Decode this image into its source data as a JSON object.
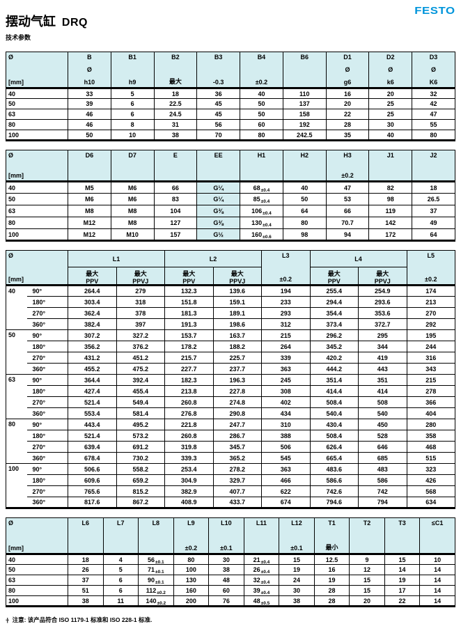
{
  "header": {
    "title_cn": "摆动气缸",
    "title_code": "DRQ",
    "subtitle": "技术参数",
    "brand": "FESTO"
  },
  "colors": {
    "brand_blue": "#0095db",
    "table_header_bg": "#d4edf0"
  },
  "tables": [
    {
      "name": "dimensions-b-to-d3",
      "type": "simple",
      "unit_col": [
        "Ø",
        "[mm]"
      ],
      "columns": [
        {
          "lines": [
            "B",
            "Ø",
            "h10"
          ]
        },
        {
          "lines": [
            "B1",
            "",
            "h9"
          ]
        },
        {
          "lines": [
            "B2",
            "",
            "最大"
          ]
        },
        {
          "lines": [
            "B3",
            "",
            "-0.3"
          ]
        },
        {
          "lines": [
            "B4",
            "",
            "±0.2"
          ]
        },
        {
          "lines": [
            "B6",
            "",
            ""
          ]
        },
        {
          "lines": [
            "D1",
            "Ø",
            "g6"
          ]
        },
        {
          "lines": [
            "D2",
            "Ø",
            "k6"
          ]
        },
        {
          "lines": [
            "D3",
            "Ø",
            "K6"
          ]
        }
      ],
      "rows": [
        {
          "size": "40",
          "cells": [
            "33",
            "5",
            "18",
            "36",
            "40",
            "110",
            "16",
            "20",
            "32"
          ]
        },
        {
          "size": "50",
          "cells": [
            "39",
            "6",
            "22.5",
            "45",
            "50",
            "137",
            "20",
            "25",
            "42"
          ]
        },
        {
          "size": "63",
          "cells": [
            "46",
            "6",
            "24.5",
            "45",
            "50",
            "158",
            "22",
            "25",
            "47"
          ]
        },
        {
          "size": "80",
          "cells": [
            "46",
            "8",
            "31",
            "56",
            "60",
            "192",
            "28",
            "30",
            "55"
          ]
        },
        {
          "size": "100",
          "cells": [
            "50",
            "10",
            "38",
            "70",
            "80",
            "242.5",
            "35",
            "40",
            "80"
          ]
        }
      ]
    },
    {
      "name": "dimensions-d6-to-j2",
      "type": "simple",
      "unit_col": [
        "Ø",
        "[mm]"
      ],
      "highlight_col": 3,
      "columns": [
        {
          "lines": [
            "D6",
            "",
            ""
          ]
        },
        {
          "lines": [
            "D7",
            "",
            ""
          ]
        },
        {
          "lines": [
            "E",
            "",
            ""
          ]
        },
        {
          "lines": [
            "EE",
            "",
            ""
          ]
        },
        {
          "lines": [
            "H1",
            "",
            ""
          ]
        },
        {
          "lines": [
            "H2",
            "",
            ""
          ]
        },
        {
          "lines": [
            "H3",
            "",
            "±0.2"
          ]
        },
        {
          "lines": [
            "J1",
            "",
            ""
          ]
        },
        {
          "lines": [
            "J2",
            "",
            ""
          ]
        }
      ],
      "rows": [
        {
          "size": "40",
          "cells": [
            "M5",
            "M6",
            "66",
            "G¼",
            [
              "68",
              "±0.4"
            ],
            "40",
            "47",
            "82",
            "18"
          ]
        },
        {
          "size": "50",
          "cells": [
            "M6",
            "M6",
            "83",
            "G¼",
            [
              "85",
              "±0.4"
            ],
            "50",
            "53",
            "98",
            "26.5"
          ]
        },
        {
          "size": "63",
          "cells": [
            "M8",
            "M8",
            "104",
            "G⅜",
            [
              "106",
              "±0.4"
            ],
            "64",
            "66",
            "119",
            "37"
          ]
        },
        {
          "size": "80",
          "cells": [
            "M12",
            "M8",
            "127",
            "G⅜",
            [
              "130",
              "±0.4"
            ],
            "80",
            "70.7",
            "142",
            "49"
          ]
        },
        {
          "size": "100",
          "cells": [
            "M12",
            "M10",
            "157",
            "G½",
            [
              "160",
              "±0.6"
            ],
            "98",
            "94",
            "172",
            "64"
          ]
        }
      ]
    },
    {
      "name": "lengths-l1-to-l5",
      "type": "grouped",
      "unit_col": [
        "Ø",
        "[mm]"
      ],
      "col_groups": [
        {
          "label": "L1",
          "subs": [
            [
              "最大",
              "PPV"
            ],
            [
              "最大",
              "PPVJ"
            ]
          ]
        },
        {
          "label": "L2",
          "subs": [
            [
              "最大",
              "PPV"
            ],
            [
              "最大",
              "PPVJ"
            ]
          ]
        },
        {
          "label": "L3",
          "subs": [
            [
              "",
              "±0.2"
            ]
          ]
        },
        {
          "label": "L4",
          "subs": [
            [
              "最大",
              "PPV"
            ],
            [
              "最大",
              "PPVJ"
            ]
          ]
        },
        {
          "label": "L5",
          "subs": [
            [
              "",
              "±0.2"
            ]
          ]
        }
      ],
      "groups": [
        {
          "size": "40",
          "rows": [
            {
              "angle": "90°",
              "cells": [
                "264.4",
                "279",
                "132.3",
                "139.6",
                "194",
                "255.4",
                "254.9",
                "174"
              ]
            },
            {
              "angle": "180°",
              "cells": [
                "303.4",
                "318",
                "151.8",
                "159.1",
                "233",
                "294.4",
                "293.6",
                "213"
              ]
            },
            {
              "angle": "270°",
              "cells": [
                "362.4",
                "378",
                "181.3",
                "189.1",
                "293",
                "354.4",
                "353.6",
                "270"
              ]
            },
            {
              "angle": "360°",
              "cells": [
                "382.4",
                "397",
                "191.3",
                "198.6",
                "312",
                "373.4",
                "372.7",
                "292"
              ]
            }
          ]
        },
        {
          "size": "50",
          "rows": [
            {
              "angle": "90°",
              "cells": [
                "307.2",
                "327.2",
                "153.7",
                "163.7",
                "215",
                "296.2",
                "295",
                "195"
              ]
            },
            {
              "angle": "180°",
              "cells": [
                "356.2",
                "376.2",
                "178.2",
                "188.2",
                "264",
                "345.2",
                "344",
                "244"
              ]
            },
            {
              "angle": "270°",
              "cells": [
                "431.2",
                "451.2",
                "215.7",
                "225.7",
                "339",
                "420.2",
                "419",
                "316"
              ]
            },
            {
              "angle": "360°",
              "cells": [
                "455.2",
                "475.2",
                "227.7",
                "237.7",
                "363",
                "444.2",
                "443",
                "343"
              ]
            }
          ]
        },
        {
          "size": "63",
          "rows": [
            {
              "angle": "90°",
              "cells": [
                "364.4",
                "392.4",
                "182.3",
                "196.3",
                "245",
                "351.4",
                "351",
                "215"
              ]
            },
            {
              "angle": "180°",
              "cells": [
                "427.4",
                "455.4",
                "213.8",
                "227.8",
                "308",
                "414.4",
                "414",
                "278"
              ]
            },
            {
              "angle": "270°",
              "cells": [
                "521.4",
                "549.4",
                "260.8",
                "274.8",
                "402",
                "508.4",
                "508",
                "366"
              ]
            },
            {
              "angle": "360°",
              "cells": [
                "553.4",
                "581.4",
                "276.8",
                "290.8",
                "434",
                "540.4",
                "540",
                "404"
              ]
            }
          ]
        },
        {
          "size": "80",
          "rows": [
            {
              "angle": "90°",
              "cells": [
                "443.4",
                "495.2",
                "221.8",
                "247.7",
                "310",
                "430.4",
                "450",
                "280"
              ]
            },
            {
              "angle": "180°",
              "cells": [
                "521.4",
                "573.2",
                "260.8",
                "286.7",
                "388",
                "508.4",
                "528",
                "358"
              ]
            },
            {
              "angle": "270°",
              "cells": [
                "639.4",
                "691.2",
                "319.8",
                "345.7",
                "506",
                "626.4",
                "646",
                "468"
              ]
            },
            {
              "angle": "360°",
              "cells": [
                "678.4",
                "730.2",
                "339.3",
                "365.2",
                "545",
                "665.4",
                "685",
                "515"
              ]
            }
          ]
        },
        {
          "size": "100",
          "rows": [
            {
              "angle": "90°",
              "cells": [
                "506.6",
                "558.2",
                "253.4",
                "278.2",
                "363",
                "483.6",
                "483",
                "323"
              ]
            },
            {
              "angle": "180°",
              "cells": [
                "609.6",
                "659.2",
                "304.9",
                "329.7",
                "466",
                "586.6",
                "586",
                "426"
              ]
            },
            {
              "angle": "270°",
              "cells": [
                "765.6",
                "815.2",
                "382.9",
                "407.7",
                "622",
                "742.6",
                "742",
                "568"
              ]
            },
            {
              "angle": "360°",
              "cells": [
                "817.6",
                "867.2",
                "408.9",
                "433.7",
                "674",
                "794.6",
                "794",
                "634"
              ]
            }
          ]
        }
      ]
    },
    {
      "name": "lengths-l6-to-c1",
      "type": "simple",
      "unit_col": [
        "Ø",
        "[mm]"
      ],
      "columns": [
        {
          "lines": [
            "L6",
            "",
            ""
          ]
        },
        {
          "lines": [
            "L7",
            "",
            ""
          ]
        },
        {
          "lines": [
            "L8",
            "",
            ""
          ]
        },
        {
          "lines": [
            "L9",
            "",
            "±0.2"
          ]
        },
        {
          "lines": [
            "L10",
            "",
            "±0.1"
          ]
        },
        {
          "lines": [
            "L11",
            "",
            ""
          ]
        },
        {
          "lines": [
            "L12",
            "",
            "±0.1"
          ]
        },
        {
          "lines": [
            "T1",
            "",
            "最小"
          ]
        },
        {
          "lines": [
            "T2",
            "",
            ""
          ]
        },
        {
          "lines": [
            "T3",
            "",
            ""
          ]
        },
        {
          "lines": [
            "≤C1",
            "",
            ""
          ]
        }
      ],
      "rows": [
        {
          "size": "40",
          "cells": [
            "18",
            "4",
            [
              "56",
              "±0.1"
            ],
            "80",
            "30",
            [
              "21",
              "±0.4"
            ],
            "15",
            "12.5",
            "9",
            "15",
            "10"
          ]
        },
        {
          "size": "50",
          "cells": [
            "26",
            "5",
            [
              "71",
              "±0.1"
            ],
            "100",
            "38",
            [
              "26",
              "±0.4"
            ],
            "19",
            "16",
            "12",
            "14",
            "14"
          ]
        },
        {
          "size": "63",
          "cells": [
            "37",
            "6",
            [
              "90",
              "±0.1"
            ],
            "130",
            "48",
            [
              "32",
              "±0.4"
            ],
            "24",
            "19",
            "15",
            "19",
            "14"
          ]
        },
        {
          "size": "80",
          "cells": [
            "51",
            "6",
            [
              "112",
              "±0.2"
            ],
            "160",
            "60",
            [
              "39",
              "±0.4"
            ],
            "30",
            "28",
            "15",
            "17",
            "14"
          ]
        },
        {
          "size": "100",
          "cells": [
            "38",
            "11",
            [
              "140",
              "±0.2"
            ],
            "200",
            "76",
            [
              "48",
              "±0.5"
            ],
            "38",
            "28",
            "20",
            "22",
            "14"
          ]
        }
      ]
    }
  ],
  "footnote": {
    "marker": "·|·",
    "text": "注意: 该产品符合 ISO 1179-1 标准和 ISO 228-1 标准."
  }
}
